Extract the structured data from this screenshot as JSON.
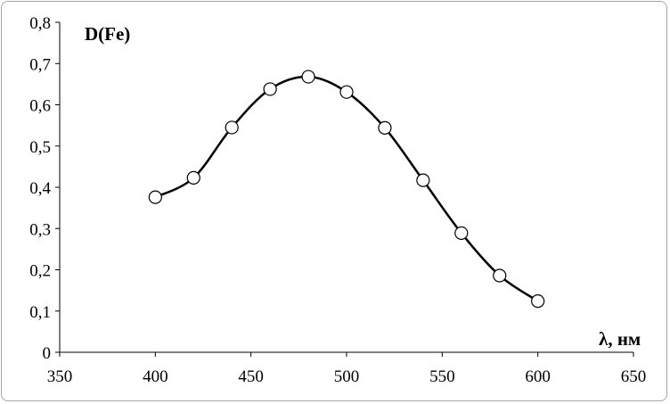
{
  "chart_data": {
    "type": "line",
    "title": "",
    "ylabel": "D(Fe)",
    "xlabel": "λ, нм",
    "xlim": [
      350,
      650
    ],
    "ylim": [
      0,
      0.8
    ],
    "x_ticks": [
      350,
      400,
      450,
      500,
      550,
      600,
      650
    ],
    "y_ticks": [
      0,
      0.1,
      0.2,
      0.3,
      0.4,
      0.5,
      0.6,
      0.7,
      0.8
    ],
    "x_tick_labels": [
      "350",
      "400",
      "450",
      "500",
      "550",
      "600",
      "650"
    ],
    "y_tick_labels": [
      "0",
      "0,1",
      "0,2",
      "0,3",
      "0,4",
      "0,5",
      "0,6",
      "0,7",
      "0,8"
    ],
    "grid": false,
    "smooth": true,
    "markers": "open-circle",
    "series": [
      {
        "x": [
          400,
          420,
          440,
          460,
          480,
          500,
          520,
          540,
          560,
          580,
          600
        ],
        "y": [
          0.376,
          0.423,
          0.545,
          0.638,
          0.668,
          0.631,
          0.544,
          0.417,
          0.289,
          0.186,
          0.124
        ]
      }
    ]
  }
}
